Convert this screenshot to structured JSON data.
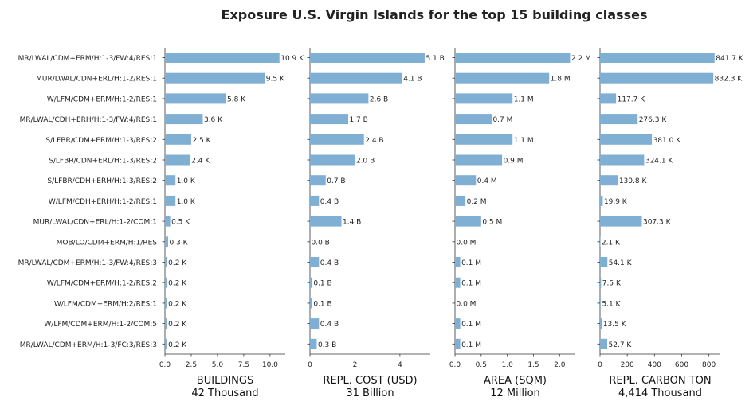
{
  "chart_data": {
    "type": "bar",
    "orientation": "horizontal",
    "title": "Exposure U.S. Virgin Islands for the top 15 building classes",
    "categories": [
      "MR/LWAL/CDM+ERM/H:1-3/FW:4/RES:1",
      "MUR/LWAL/CDN+ERL/H:1-2/RES:1",
      "W/LFM/CDM+ERM/H:1-2/RES:1",
      "MR/LWAL/CDH+ERH/H:1-3/FW:4/RES:1",
      "S/LFBR/CDM+ERM/H:1-3/RES:2",
      "S/LFBR/CDN+ERL/H:1-3/RES:2",
      "S/LFBR/CDH+ERH/H:1-3/RES:2",
      "W/LFM/CDH+ERH/H:1-2/RES:1",
      "MUR/LWAL/CDN+ERL/H:1-2/COM:1",
      "MOB/LO/CDM+ERM/H:1/RES",
      "MR/LWAL/CDM+ERM/H:1-3/FW:4/RES:3",
      "W/LFM/CDM+ERM/H:1-2/RES:2",
      "W/LFM/CDM+ERM/H:2/RES:1",
      "W/LFM/CDM+ERM/H:1-2/COM:5",
      "MR/LWAL/CDM+ERM/H:1-3/FC:3/RES:3"
    ],
    "bar_color": "#7fafd3",
    "grid": false,
    "panels": [
      {
        "xlabel": "BUILDINGS",
        "total": "42 Thousand",
        "xlim": [
          0,
          11.45
        ],
        "ticks": [
          0,
          2.5,
          5,
          7.5,
          10
        ],
        "tick_labels": [
          "0.0",
          "2.5",
          "5.0",
          "7.5",
          "10.0"
        ],
        "values": [
          10.9,
          9.5,
          5.8,
          3.6,
          2.5,
          2.4,
          1.0,
          1.0,
          0.5,
          0.3,
          0.2,
          0.2,
          0.2,
          0.2,
          0.2
        ],
        "labels": [
          "10.9 K",
          "9.5 K",
          "5.8 K",
          "3.6 K",
          "2.5 K",
          "2.4 K",
          "1.0 K",
          "1.0 K",
          "0.5 K",
          "0.3 K",
          "0.2 K",
          "0.2 K",
          "0.2 K",
          "0.2 K",
          "0.2 K"
        ]
      },
      {
        "xlabel": "REPL. COST (USD)",
        "total": "31 Billion",
        "xlim": [
          0,
          5.35
        ],
        "ticks": [
          0,
          2,
          4
        ],
        "tick_labels": [
          "0",
          "2",
          "4"
        ],
        "values": [
          5.1,
          4.1,
          2.6,
          1.7,
          2.4,
          2.0,
          0.7,
          0.4,
          1.4,
          0.0,
          0.4,
          0.1,
          0.1,
          0.4,
          0.3
        ],
        "labels": [
          "5.1 B",
          "4.1 B",
          "2.6 B",
          "1.7 B",
          "2.4 B",
          "2.0 B",
          "0.7 B",
          "0.4 B",
          "1.4 B",
          "0.0 B",
          "0.4 B",
          "0.1 B",
          "0.1 B",
          "0.4 B",
          "0.3 B"
        ]
      },
      {
        "xlabel": "AREA (SQM)",
        "total": "12 Million",
        "xlim": [
          0,
          2.3
        ],
        "ticks": [
          0,
          0.5,
          1,
          1.5,
          2
        ],
        "tick_labels": [
          "0.0",
          "0.5",
          "1.0",
          "1.5",
          "2.0"
        ],
        "values": [
          2.2,
          1.8,
          1.1,
          0.7,
          1.1,
          0.9,
          0.4,
          0.2,
          0.5,
          0.0,
          0.1,
          0.1,
          0.0,
          0.1,
          0.1
        ],
        "labels": [
          "2.2 M",
          "1.8 M",
          "1.1 M",
          "0.7 M",
          "1.1 M",
          "0.9 M",
          "0.4 M",
          "0.2 M",
          "0.5 M",
          "0.0 M",
          "0.1 M",
          "0.1 M",
          "0.0 M",
          "0.1 M",
          "0.1 M"
        ]
      },
      {
        "xlabel": "REPL. CARBON TON",
        "total": "4,414 Thousand",
        "xlim": [
          0,
          884
        ],
        "ticks": [
          0,
          200,
          400,
          600,
          800
        ],
        "tick_labels": [
          "0",
          "200",
          "400",
          "600",
          "800"
        ],
        "values": [
          841.7,
          832.3,
          117.7,
          276.3,
          381.0,
          324.1,
          130.8,
          19.9,
          307.3,
          2.1,
          54.1,
          7.5,
          5.1,
          13.5,
          52.7
        ],
        "labels": [
          "841.7 K",
          "832.3 K",
          "117.7 K",
          "276.3 K",
          "381.0 K",
          "324.1 K",
          "130.8 K",
          "19.9 K",
          "307.3 K",
          "2.1 K",
          "54.1 K",
          "7.5 K",
          "5.1 K",
          "13.5 K",
          "52.7 K"
        ]
      }
    ]
  }
}
